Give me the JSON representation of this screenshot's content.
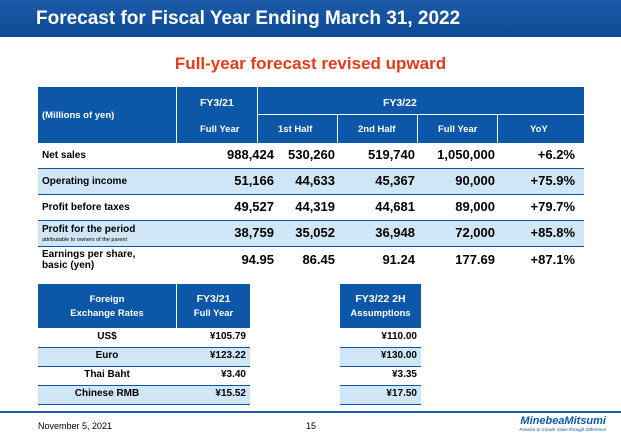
{
  "title": "Forecast for Fiscal Year Ending March 31, 2022",
  "subtitle": "Full-year forecast revised upward",
  "table": {
    "unit_label": "(Millions of yen)",
    "group_headers": [
      "FY3/21",
      "FY3/22"
    ],
    "column_headers": [
      "Full Year",
      "1st Half",
      "2nd Half",
      "Full Year",
      "YoY"
    ],
    "rows": [
      {
        "label": "Net sales",
        "sub": "",
        "values": [
          "988,424",
          "530,260",
          "519,740",
          "1,050,000",
          "+6.2%"
        ]
      },
      {
        "label": "Operating income",
        "sub": "",
        "values": [
          "51,166",
          "44,633",
          "45,367",
          "90,000",
          "+75.9%"
        ]
      },
      {
        "label": "Profit before taxes",
        "sub": "",
        "values": [
          "49,527",
          "44,319",
          "44,681",
          "89,000",
          "+79.7%"
        ]
      },
      {
        "label": "Profit for the period",
        "sub": "attributable to owners of the parent",
        "values": [
          "38,759",
          "35,052",
          "36,948",
          "72,000",
          "+85.8%"
        ]
      },
      {
        "label": "Earnings per share,",
        "sub2": "basic  (yen)",
        "values": [
          "94.95",
          "86.45",
          "91.24",
          "177.69",
          "+87.1%"
        ]
      }
    ]
  },
  "fx": {
    "header_label_1": "Foreign",
    "header_label_2": "Exchange Rates",
    "fy21_1": "FY3/21",
    "fy21_2": "Full Year",
    "fy22_1": "FY3/22 2H",
    "fy22_2": "Assumptions",
    "rows": [
      {
        "currency": "US$",
        "fy21": "¥105.79",
        "fy22": "¥110.00"
      },
      {
        "currency": "Euro",
        "fy21": "¥123.22",
        "fy22": "¥130.00"
      },
      {
        "currency": "Thai Baht",
        "fy21": "¥3.40",
        "fy22": "¥3.35"
      },
      {
        "currency": "Chinese RMB",
        "fy21": "¥15.52",
        "fy22": "¥17.50"
      }
    ]
  },
  "footer": {
    "date": "November 5, 2021",
    "page": "15",
    "logo_name": "MinebeaMitsumi",
    "logo_tag": "Passion to Create Value through Difference"
  }
}
